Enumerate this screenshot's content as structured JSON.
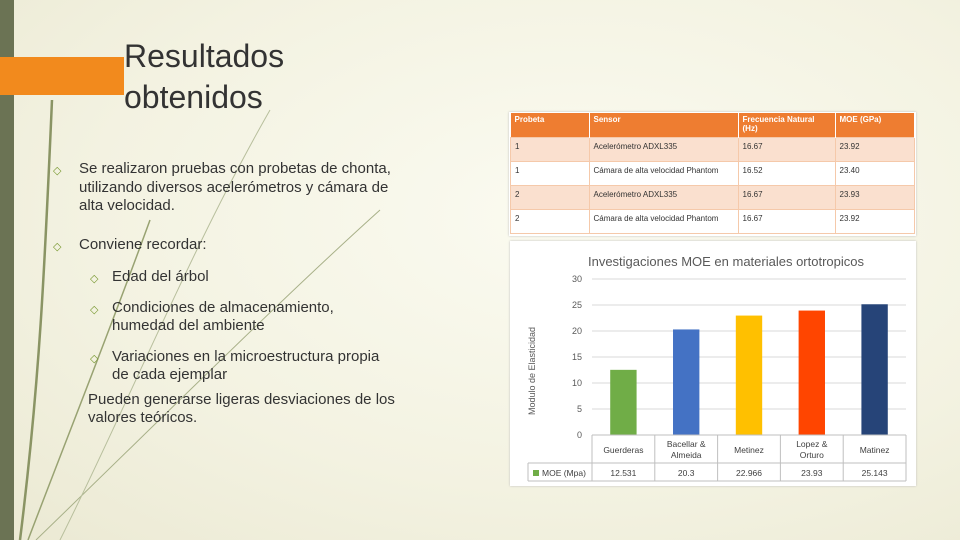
{
  "slide": {
    "title": "Resultados\nobtenidos",
    "bullets": [
      {
        "text": "Se realizaron pruebas con probetas de chonta, utilizando diversos acelerómetros y cámara de alta velocidad.",
        "level": 1
      },
      {
        "text": "Conviene recordar:",
        "level": 1
      },
      {
        "text": "Edad del árbol",
        "level": 2
      },
      {
        "text": "Condiciones de almacenamiento, humedad del ambiente",
        "level": 2
      },
      {
        "text": "Variaciones en la microestructura propia de cada ejemplar",
        "level": 2
      }
    ],
    "note": "Pueden generarse ligeras desviaciones de los valores teóricos.",
    "bullet_icon": "diamond-bullet-icon",
    "colors": {
      "accent": "#f28a1d",
      "stripe": "#6b7354",
      "bullet": "#7a9a33"
    }
  },
  "table": {
    "headers": [
      "Probeta",
      "Sensor",
      "Frecuencia Natural (Hz)",
      "MOE (GPa)"
    ],
    "rows": [
      [
        "1",
        "Acelerómetro ADXL335",
        "16.67",
        "23.92"
      ],
      [
        "1",
        "Cámara de alta velocidad Phantom",
        "16.52",
        "23.40"
      ],
      [
        "2",
        "Acelerómetro ADXL335",
        "16.67",
        "23.93"
      ],
      [
        "2",
        "Cámara de alta velocidad Phantom",
        "16.67",
        "23.92"
      ]
    ],
    "header_color": "#ee7d31",
    "band_color": "#fae0cf"
  },
  "chart_data": {
    "type": "bar",
    "title": "Investigaciones MOE en materiales ortotropicos",
    "ylabel": "Modulo de Elasticidad",
    "xlabel": "",
    "ylim": [
      0,
      30
    ],
    "yticks": [
      0,
      5,
      10,
      15,
      20,
      25,
      30
    ],
    "categories": [
      "Guerderas",
      "Bacellar & Almeida",
      "Metinez",
      "Lopez & Orturo",
      "Matinez"
    ],
    "series": [
      {
        "name": "MOE (Mpa)",
        "values": [
          12.531,
          20.3,
          22.966,
          23.93,
          25.143
        ]
      }
    ],
    "value_labels": [
      "12.531",
      "20.3",
      "22.966",
      "23.93",
      "25.143"
    ],
    "bar_colors": [
      "#70ad47",
      "#4472c4",
      "#ffc000",
      "#ff4500",
      "#264478"
    ],
    "grid": true,
    "legend": "data-table-below"
  }
}
